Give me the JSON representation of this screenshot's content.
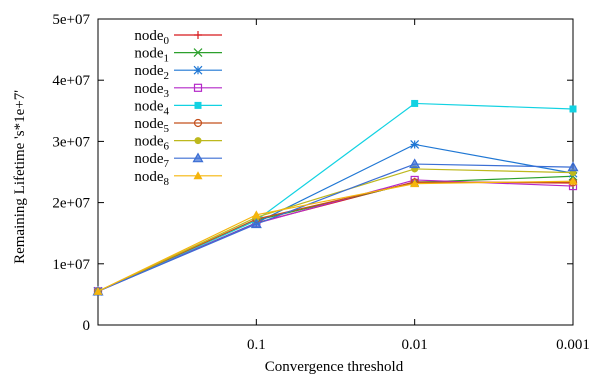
{
  "chart_data": {
    "type": "line",
    "title": "",
    "xlabel": "Convergence threshold",
    "ylabel": "Remaining Lifetime 's*1e+7'",
    "categories": [
      "",
      "0.1",
      "0.01",
      "0.001"
    ],
    "ylim": [
      0,
      50000000
    ],
    "yticks": [
      0,
      10000000,
      20000000,
      30000000,
      40000000,
      50000000
    ],
    "ytick_labels": [
      "0",
      "1e+07",
      "2e+07",
      "3e+07",
      "4e+07",
      "5e+07"
    ],
    "grid": false,
    "legend_position": "top-left",
    "series": [
      {
        "name": "node",
        "sub": "0",
        "color": "#d7191c",
        "marker": "plus",
        "values": [
          5500000,
          16700000,
          23400000,
          23200000
        ]
      },
      {
        "name": "node",
        "sub": "1",
        "color": "#2ca02c",
        "marker": "cross",
        "values": [
          5500000,
          17100000,
          23300000,
          24300000
        ]
      },
      {
        "name": "node",
        "sub": "2",
        "color": "#1f77d4",
        "marker": "star",
        "values": [
          5500000,
          16700000,
          29500000,
          24800000
        ]
      },
      {
        "name": "node",
        "sub": "3",
        "color": "#b429c8",
        "marker": "open-square",
        "values": [
          5500000,
          16600000,
          23700000,
          22700000
        ]
      },
      {
        "name": "node",
        "sub": "4",
        "color": "#12d2e2",
        "marker": "filled-square",
        "values": [
          5500000,
          17100000,
          36200000,
          35300000
        ]
      },
      {
        "name": "node",
        "sub": "5",
        "color": "#c3501c",
        "marker": "open-circle",
        "values": [
          5500000,
          17300000,
          23300000,
          23300000
        ]
      },
      {
        "name": "node",
        "sub": "6",
        "color": "#bdb81d",
        "marker": "filled-circle",
        "values": [
          5500000,
          17600000,
          25500000,
          24900000
        ]
      },
      {
        "name": "node",
        "sub": "7",
        "color": "#3b6ed4",
        "marker": "triangle",
        "values": [
          5500000,
          16500000,
          26300000,
          25800000
        ]
      },
      {
        "name": "node",
        "sub": "8",
        "color": "#f5b50c",
        "marker": "filled-triangle",
        "values": [
          5500000,
          18000000,
          23100000,
          23500000
        ]
      }
    ]
  }
}
